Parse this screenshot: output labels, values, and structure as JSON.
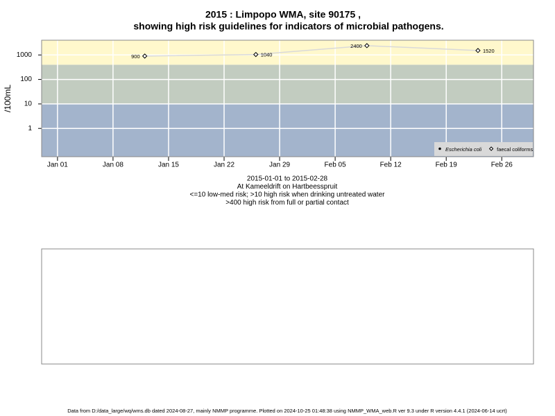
{
  "chart_data": {
    "type": "line",
    "title": "2015 : Limpopo WMA, site 90175 ,",
    "subtitle": "showing high risk guidelines for indicators of microbial pathogens.",
    "y_label": "/100mL",
    "notes": [
      "2015-01-01 to 2015-02-28",
      "At Kameeldrift on Hartbeesspruit",
      "<=10 low-med risk; >10 high risk when drinking untreated water",
      ">400 high risk from full or partial contact"
    ],
    "footer": "Data from D:/data_large/wq/wms.db dated 2024-08-27, mainly NMMP programme. Plotted on 2024-10-25 01:48:38 using NMMP_WMA_web.R ver 9.3 under R version 4.4.1 (2024-06-14 ucrt)",
    "x": [
      "2015-01-12",
      "2015-01-26",
      "2015-02-09",
      "2015-02-23"
    ],
    "series": [
      {
        "name": "Escherichia coli",
        "color": "#000000",
        "marker": "dot",
        "values": [
          null,
          null,
          null,
          null
        ]
      },
      {
        "name": "faecal coliforms",
        "color": "#000000",
        "marker": "diamond",
        "line_color": "#d9d9d9",
        "values": [
          900,
          1040,
          2400,
          1520
        ]
      }
    ],
    "xlim": [
      "2014-12-30",
      "2015-03-02"
    ],
    "xticks": [
      {
        "value": "2015-01-01",
        "label": "Jan 01"
      },
      {
        "value": "2015-01-08",
        "label": "Jan 08"
      },
      {
        "value": "2015-01-15",
        "label": "Jan 15"
      },
      {
        "value": "2015-01-22",
        "label": "Jan 22"
      },
      {
        "value": "2015-01-29",
        "label": "Jan 29"
      },
      {
        "value": "2015-02-05",
        "label": "Feb 05"
      },
      {
        "value": "2015-02-12",
        "label": "Feb 12"
      },
      {
        "value": "2015-02-19",
        "label": "Feb 19"
      },
      {
        "value": "2015-02-26",
        "label": "Feb 26"
      }
    ],
    "ylim": [
      0.07,
      4000
    ],
    "yticks": [
      1,
      10,
      100,
      1000
    ],
    "log_y": true,
    "grid": true,
    "thresholds": [
      10,
      400
    ],
    "band_colors": [
      "#a3b4cc",
      "#c2ccc0",
      "#fff8cc"
    ],
    "legend": "bottom-right"
  }
}
